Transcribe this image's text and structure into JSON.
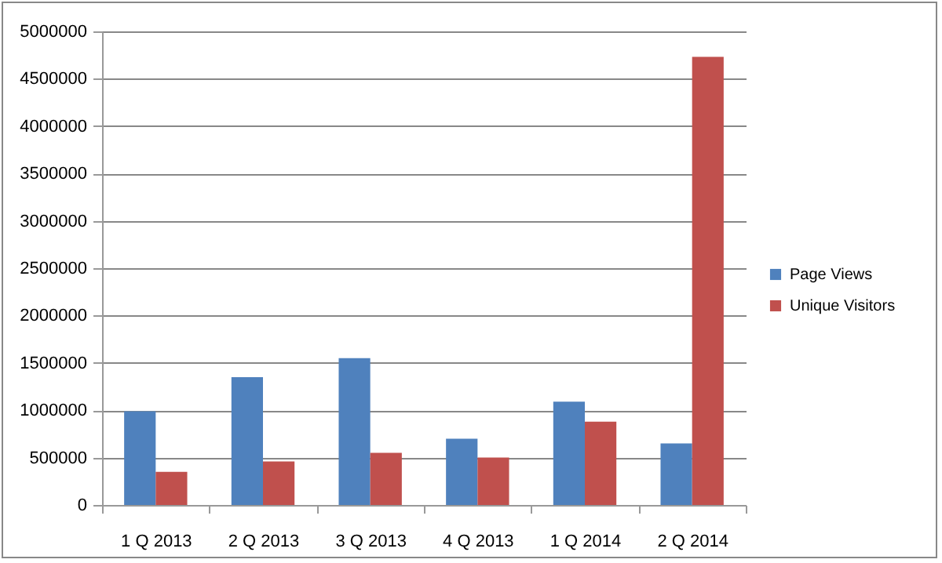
{
  "chart_data": {
    "type": "bar",
    "categories": [
      "1 Q 2013",
      "2 Q 2013",
      "3 Q 2013",
      "4 Q 2013",
      "1 Q 2014",
      "2 Q 2014"
    ],
    "series": [
      {
        "name": "Page Views",
        "color": "#4f81bd",
        "values": [
          990000,
          1350000,
          1550000,
          700000,
          1090000,
          650000
        ]
      },
      {
        "name": "Unique Visitors",
        "color": "#c0504d",
        "values": [
          350000,
          460000,
          550000,
          500000,
          880000,
          4730000
        ]
      }
    ],
    "ylim": [
      0,
      5000000
    ],
    "yticks": [
      0,
      500000,
      1000000,
      1500000,
      2000000,
      2500000,
      3000000,
      3500000,
      4000000,
      4500000,
      5000000
    ],
    "grid": "y",
    "legend": "right"
  }
}
